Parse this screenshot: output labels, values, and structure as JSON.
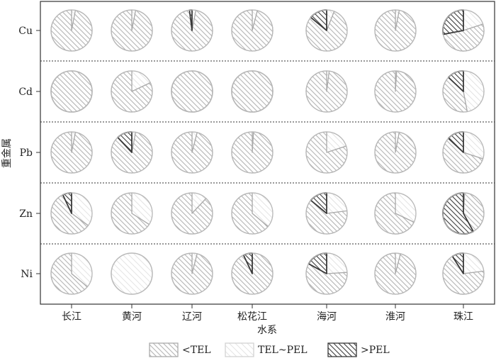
{
  "chart_data": {
    "type": "pie",
    "xlabel": "水系",
    "ylabel": "重金属",
    "rivers": [
      "长江",
      "黄河",
      "辽河",
      "松花江",
      "海河",
      "淮河",
      "珠江"
    ],
    "metals": [
      "Cu",
      "Cd",
      "Pb",
      "Zn",
      "Ni"
    ],
    "categories": [
      "<TEL",
      "TEL~PEL",
      ">PEL"
    ],
    "colors": {
      "<TEL": "#c4c4c4",
      "TEL~PEL": "#e6e6e6",
      ">PEL": "#4a4a4a"
    },
    "series": [
      {
        "name": "Cu",
        "values": [
          [
            97,
            3,
            0
          ],
          [
            97,
            3,
            0
          ],
          [
            95,
            3,
            2
          ],
          [
            96,
            4,
            0
          ],
          [
            80,
            6,
            14
          ],
          [
            97,
            3,
            0
          ],
          [
            52,
            20,
            28
          ]
        ]
      },
      {
        "name": "Cd",
        "values": [
          [
            100,
            0,
            0
          ],
          [
            82,
            18,
            0
          ],
          [
            100,
            0,
            0
          ],
          [
            100,
            0,
            0
          ],
          [
            98,
            2,
            0
          ],
          [
            99,
            1,
            0
          ],
          [
            40,
            47,
            13
          ]
        ]
      },
      {
        "name": "Pb",
        "values": [
          [
            97,
            3,
            0
          ],
          [
            85,
            3,
            12
          ],
          [
            96,
            4,
            0
          ],
          [
            99,
            1,
            0
          ],
          [
            80,
            20,
            0
          ],
          [
            97,
            3,
            0
          ],
          [
            57,
            30,
            13
          ]
        ]
      },
      {
        "name": "Zn",
        "values": [
          [
            58,
            35,
            7
          ],
          [
            66,
            34,
            0
          ],
          [
            88,
            12,
            0
          ],
          [
            64,
            36,
            0
          ],
          [
            63,
            23,
            14
          ],
          [
            68,
            32,
            0
          ],
          [
            41,
            1,
            58
          ]
        ]
      },
      {
        "name": "Ni",
        "values": [
          [
            64,
            36,
            0
          ],
          [
            0,
            100,
            0
          ],
          [
            96,
            4,
            0
          ],
          [
            93,
            0,
            7
          ],
          [
            59,
            24,
            17
          ],
          [
            96,
            4,
            0
          ],
          [
            68,
            23,
            9
          ]
        ]
      }
    ],
    "legend": {
      "position": "bottom",
      "entries": [
        "<TEL",
        "TEL~PEL",
        ">PEL"
      ]
    },
    "grid": false
  }
}
